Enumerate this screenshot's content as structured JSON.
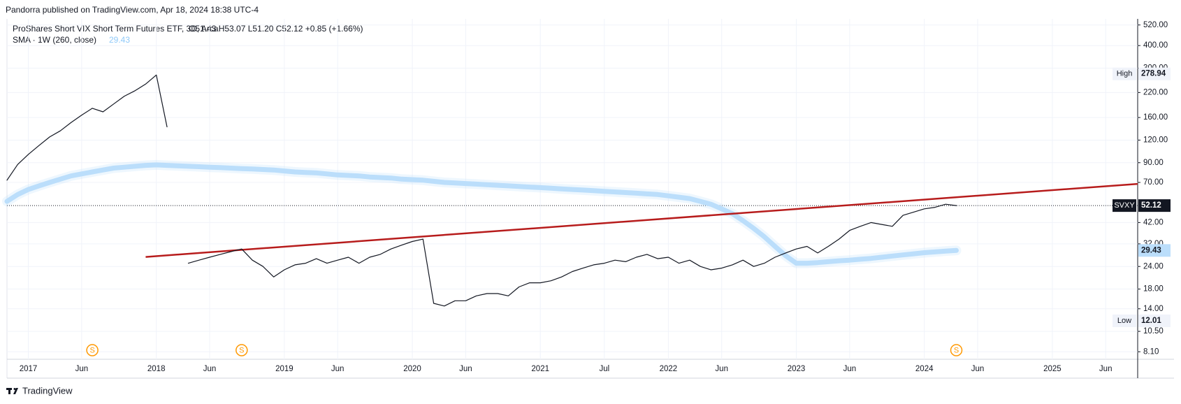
{
  "chart_data": {
    "type": "line",
    "publisher_note": "Pandorra published on TradingView.com, Apr 18, 2024 18:38 UTC-4",
    "title": "ProShares Short VIX Short Term Futures ETF, 3D, Arca",
    "ohlc_text": "O51.43  H53.07  L51.20  C52.12  +0.85 (+1.66%)",
    "brand": "TradingView",
    "log_scale": true,
    "grid": true,
    "x": [
      "2016-11",
      "2016-12",
      "2017-01",
      "2017-02",
      "2017-03",
      "2017-04",
      "2017-05",
      "2017-06",
      "2017-07",
      "2017-08",
      "2017-09",
      "2017-10",
      "2017-11",
      "2017-12",
      "2018-01",
      "2018-02",
      "2018-03",
      "2018-04",
      "2018-05",
      "2018-06",
      "2018-07",
      "2018-08",
      "2018-09",
      "2018-10",
      "2018-11",
      "2018-12",
      "2019-01",
      "2019-02",
      "2019-03",
      "2019-04",
      "2019-05",
      "2019-06",
      "2019-07",
      "2019-08",
      "2019-09",
      "2019-10",
      "2019-11",
      "2019-12",
      "2020-01",
      "2020-02",
      "2020-03",
      "2020-04",
      "2020-05",
      "2020-06",
      "2020-07",
      "2020-08",
      "2020-09",
      "2020-10",
      "2020-11",
      "2020-12",
      "2021-01",
      "2021-02",
      "2021-03",
      "2021-04",
      "2021-05",
      "2021-06",
      "2021-07",
      "2021-08",
      "2021-09",
      "2021-10",
      "2021-11",
      "2021-12",
      "2022-01",
      "2022-02",
      "2022-03",
      "2022-04",
      "2022-05",
      "2022-06",
      "2022-07",
      "2022-08",
      "2022-09",
      "2022-10",
      "2022-11",
      "2022-12",
      "2023-01",
      "2023-02",
      "2023-03",
      "2023-04",
      "2023-05",
      "2023-06",
      "2023-07",
      "2023-08",
      "2023-09",
      "2023-10",
      "2023-11",
      "2023-12",
      "2024-01",
      "2024-02",
      "2024-03",
      "2024-04"
    ],
    "series": [
      {
        "name": "SVXY",
        "color": "#131722",
        "values": [
          72,
          88,
          100,
          112,
          125,
          135,
          150,
          165,
          180,
          172,
          190,
          210,
          225,
          245,
          275,
          142,
          null,
          25,
          26,
          27,
          28,
          29,
          30,
          26,
          24,
          21,
          23,
          24.5,
          25,
          26.5,
          25,
          26,
          27,
          25,
          27,
          28,
          30,
          31.5,
          33,
          34,
          15,
          14.5,
          15.5,
          15.5,
          16.5,
          17,
          17,
          16.5,
          18.5,
          19.5,
          19.5,
          20,
          21,
          22.5,
          23.5,
          24.5,
          25,
          26,
          25.5,
          27,
          28,
          26.5,
          27,
          25,
          26,
          24,
          23,
          23.5,
          24.5,
          26,
          24,
          25,
          27,
          28.5,
          30,
          31,
          28.5,
          31,
          34,
          38,
          40,
          42,
          41,
          40,
          46,
          48,
          50,
          51,
          53,
          52.12
        ]
      },
      {
        "name": "SMA · 1W (260, close)",
        "color": "#bbdefb",
        "values": [
          55,
          60,
          64,
          67,
          70,
          73,
          76,
          78,
          80,
          82,
          84,
          85,
          86,
          87,
          87.5,
          87,
          86.5,
          86,
          85.5,
          85,
          84.5,
          84,
          83.5,
          83,
          82.5,
          82,
          81,
          80,
          79.5,
          79,
          78,
          77,
          76.5,
          76,
          75,
          74.5,
          74,
          73,
          72.5,
          72,
          71,
          70,
          69.5,
          69,
          68.5,
          68,
          67.5,
          67,
          66.5,
          66,
          65.5,
          65,
          64.5,
          64,
          63.5,
          63,
          62.5,
          62,
          61.5,
          61,
          60.5,
          60,
          59,
          58,
          57,
          55,
          53,
          50,
          47,
          43,
          39,
          35,
          31,
          27.5,
          25,
          25,
          25.2,
          25.5,
          25.8,
          26,
          26.3,
          26.6,
          27,
          27.4,
          27.8,
          28.2,
          28.6,
          28.9,
          29.2,
          29.43
        ]
      }
    ],
    "trendline": {
      "x": [
        "2017-12",
        "2025-09"
      ],
      "values": [
        27.1,
        68.7
      ],
      "color": "#b71c1c"
    },
    "high": {
      "label": "High",
      "value": 278.94
    },
    "low": {
      "label": "Low",
      "value": 12.01
    },
    "events": {
      "x": [
        "2017-07",
        "2018-09",
        "2024-04"
      ],
      "labels": [
        "S",
        "S",
        "S"
      ],
      "color": "#ff9800"
    },
    "xlim": [
      "2016-11",
      "2025-09"
    ],
    "xticks": [
      {
        "value": "2017-01",
        "label": "2017"
      },
      {
        "value": "2017-06",
        "label": "Jun"
      },
      {
        "value": "2018-01",
        "label": "2018"
      },
      {
        "value": "2018-06",
        "label": "Jun"
      },
      {
        "value": "2019-01",
        "label": "2019"
      },
      {
        "value": "2019-06",
        "label": "Jun"
      },
      {
        "value": "2020-01",
        "label": "2020"
      },
      {
        "value": "2020-06",
        "label": "Jun"
      },
      {
        "value": "2021-01",
        "label": "2021"
      },
      {
        "value": "2021-07",
        "label": "Jul"
      },
      {
        "value": "2022-01",
        "label": "2022"
      },
      {
        "value": "2022-06",
        "label": "Jun"
      },
      {
        "value": "2023-01",
        "label": "2023"
      },
      {
        "value": "2023-06",
        "label": "Jun"
      },
      {
        "value": "2024-01",
        "label": "2024"
      },
      {
        "value": "2024-06",
        "label": "Jun"
      },
      {
        "value": "2025-01",
        "label": "2025"
      },
      {
        "value": "2025-06",
        "label": "Jun"
      }
    ],
    "ylim": [
      7.36,
      562
    ],
    "yticks": [
      {
        "value": 8.1,
        "label": "8.10"
      },
      {
        "value": 10.5,
        "label": "10.50"
      },
      {
        "value": 14,
        "label": "14.00"
      },
      {
        "value": 18,
        "label": "18.00"
      },
      {
        "value": 24,
        "label": "24.00"
      },
      {
        "value": 32,
        "label": "32.00"
      },
      {
        "value": 42,
        "label": "42.00"
      },
      {
        "value": 70,
        "label": "70.00"
      },
      {
        "value": 90,
        "label": "90.00"
      },
      {
        "value": 120,
        "label": "120.00"
      },
      {
        "value": 160,
        "label": "160.00"
      },
      {
        "value": 220,
        "label": "220.00"
      },
      {
        "value": 300,
        "label": "300.00"
      },
      {
        "value": 400,
        "label": "400.00"
      },
      {
        "value": 520,
        "label": "520.00"
      }
    ]
  }
}
